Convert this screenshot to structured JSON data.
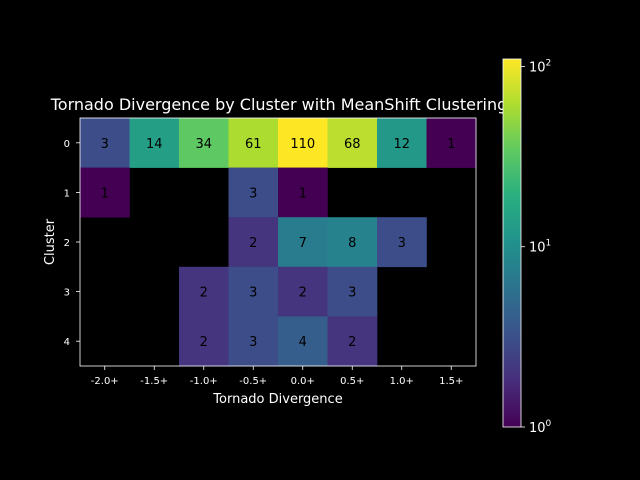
{
  "chart_data": {
    "type": "heatmap",
    "title": "Tornado Divergence by Cluster with MeanShift Clustering",
    "xlabel": "Tornado Divergence",
    "ylabel": "Cluster",
    "x_categories": [
      "-2.0+",
      "-1.5+",
      "-1.0+",
      "-0.5+",
      "0.0+",
      "0.5+",
      "1.0+",
      "1.5+"
    ],
    "y_categories": [
      "0",
      "1",
      "2",
      "3",
      "4"
    ],
    "values": [
      [
        3,
        14,
        34,
        61,
        110,
        68,
        12,
        1
      ],
      [
        1,
        null,
        null,
        3,
        1,
        null,
        null,
        null
      ],
      [
        null,
        null,
        null,
        2,
        7,
        8,
        3,
        null
      ],
      [
        null,
        null,
        2,
        3,
        2,
        3,
        null,
        null
      ],
      [
        null,
        null,
        2,
        3,
        4,
        2,
        null,
        null
      ]
    ],
    "colorbar": {
      "scale": "log",
      "range": [
        1,
        110
      ],
      "ticks": [
        {
          "value": 1,
          "base": "10",
          "exp": "0"
        },
        {
          "value": 10,
          "base": "10",
          "exp": "1"
        },
        {
          "value": 100,
          "base": "10",
          "exp": "2"
        }
      ],
      "colormap": "viridis"
    },
    "background": "#000000"
  }
}
